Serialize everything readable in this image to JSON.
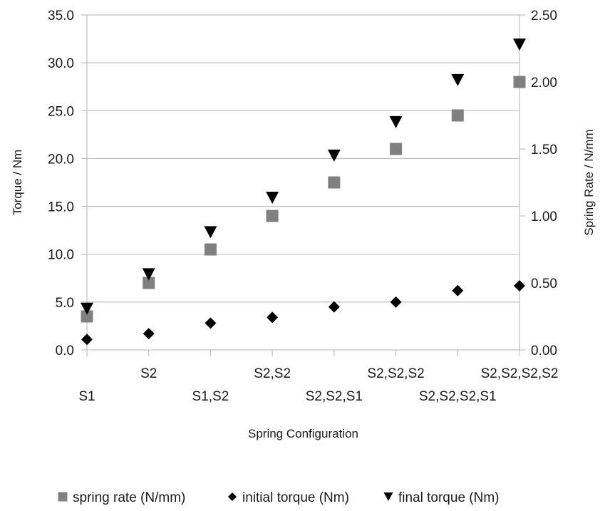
{
  "chart_data": {
    "type": "scatter",
    "categories": [
      "S1",
      "S2",
      "S1,S2",
      "S2,S2",
      "S2,S2,S1",
      "S2,S2,S2",
      "S2,S2,S2,S1",
      "S2,S2,S2,S2"
    ],
    "xlabel": "Spring Configuration",
    "ylabel": "Torque / Nm",
    "ylabel_right": "Spring Rate / N/mm",
    "ylim": [
      0,
      35
    ],
    "ylim_right": [
      0,
      2.5
    ],
    "yticks": [
      "0.0",
      "5.0",
      "10.0",
      "15.0",
      "20.0",
      "25.0",
      "30.0",
      "35.0"
    ],
    "yticks_right": [
      "0.00",
      "0.50",
      "1.00",
      "1.50",
      "2.00",
      "2.50"
    ],
    "grid": true,
    "legend_position": "bottom",
    "series": [
      {
        "name": "spring rate (N/mm)",
        "axis": "right",
        "marker": "square",
        "color": "#808080",
        "values": [
          0.25,
          0.5,
          0.75,
          1.0,
          1.25,
          1.5,
          1.75,
          2.0
        ]
      },
      {
        "name": "initial torque (Nm)",
        "axis": "left",
        "marker": "diamond",
        "color": "#000000",
        "values": [
          1.1,
          1.7,
          2.8,
          3.4,
          4.5,
          5.0,
          6.2,
          6.7
        ]
      },
      {
        "name": "final torque (Nm)",
        "axis": "left",
        "marker": "triangle-down",
        "color": "#000000",
        "values": [
          4.3,
          7.9,
          12.3,
          15.9,
          20.3,
          23.8,
          28.2,
          31.9
        ]
      }
    ]
  }
}
